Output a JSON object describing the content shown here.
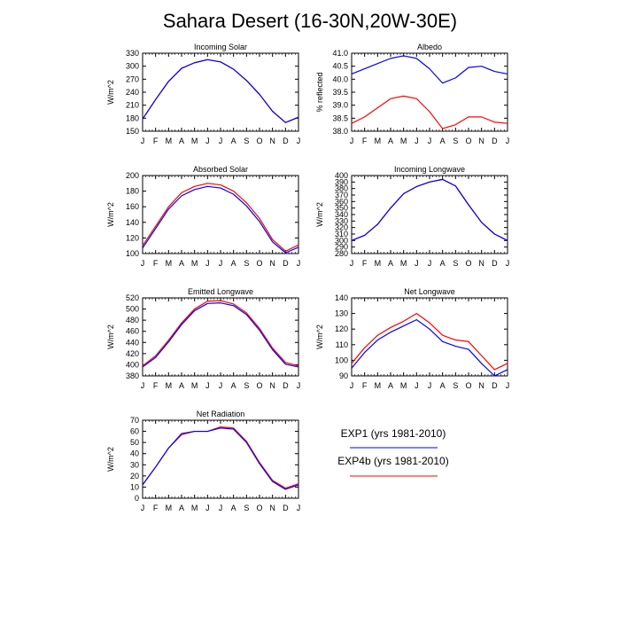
{
  "title": "Sahara Desert (16-30N,20W-30E)",
  "legend": {
    "placement": "lower-right",
    "entries": [
      {
        "label": "EXP1 (yrs 1981-2010)",
        "color": "#0000ff"
      },
      {
        "label": "EXP4b (yrs 1981-2010)",
        "color": "#ff0000"
      }
    ]
  },
  "chart_data": [
    {
      "type": "line",
      "title": "Incoming Solar",
      "ylabel": "W/m^2",
      "categories": [
        "J",
        "F",
        "M",
        "A",
        "M",
        "J",
        "J",
        "A",
        "S",
        "O",
        "N",
        "D",
        "J"
      ],
      "ylim": [
        150,
        330
      ],
      "yticks": [
        "150",
        "180",
        "210",
        "240",
        "270",
        "300",
        "330"
      ],
      "series": [
        {
          "color": "#ff0000",
          "values": [
            178,
            223,
            265,
            295,
            308,
            315,
            310,
            293,
            267,
            235,
            196,
            170,
            182
          ]
        },
        {
          "color": "#0000ff",
          "values": [
            178,
            223,
            265,
            295,
            308,
            315,
            310,
            293,
            267,
            235,
            196,
            170,
            182
          ]
        }
      ]
    },
    {
      "type": "line",
      "title": "Albedo",
      "ylabel": "% reflected",
      "categories": [
        "J",
        "F",
        "M",
        "A",
        "M",
        "J",
        "J",
        "A",
        "S",
        "O",
        "N",
        "D",
        "J"
      ],
      "ylim": [
        38.0,
        41.0
      ],
      "yticks": [
        "38.0",
        "38.5",
        "39.0",
        "39.5",
        "40.0",
        "40.5",
        "41.0"
      ],
      "series": [
        {
          "color": "#0000ff",
          "values": [
            40.2,
            40.4,
            40.6,
            40.8,
            40.9,
            40.8,
            40.4,
            39.85,
            40.05,
            40.45,
            40.5,
            40.3,
            40.2
          ]
        },
        {
          "color": "#ff0000",
          "values": [
            38.3,
            38.55,
            38.9,
            39.25,
            39.35,
            39.25,
            38.75,
            38.1,
            38.25,
            38.55,
            38.55,
            38.35,
            38.3
          ]
        }
      ]
    },
    {
      "type": "line",
      "title": "Absorbed Solar",
      "ylabel": "W/m^2",
      "categories": [
        "J",
        "F",
        "M",
        "A",
        "M",
        "J",
        "J",
        "A",
        "S",
        "O",
        "N",
        "D",
        "J"
      ],
      "ylim": [
        100,
        200
      ],
      "yticks": [
        "100",
        "120",
        "140",
        "160",
        "180",
        "200"
      ],
      "series": [
        {
          "color": "#ff0000",
          "values": [
            110,
            135,
            160,
            178,
            186,
            190,
            188,
            180,
            165,
            145,
            118,
            103,
            111
          ]
        },
        {
          "color": "#0000ff",
          "values": [
            107,
            132,
            157,
            174,
            182,
            186,
            184,
            176,
            161,
            141,
            115,
            101,
            108
          ]
        }
      ]
    },
    {
      "type": "line",
      "title": "Incoming Longwave",
      "ylabel": "W/m^2",
      "categories": [
        "J",
        "F",
        "M",
        "A",
        "M",
        "J",
        "J",
        "A",
        "S",
        "O",
        "N",
        "D",
        "J"
      ],
      "ylim": [
        280,
        400
      ],
      "yticks": [
        "280",
        "290",
        "300",
        "310",
        "320",
        "330",
        "340",
        "350",
        "360",
        "370",
        "380",
        "390",
        "400"
      ],
      "series": [
        {
          "color": "#ff0000",
          "values": [
            300,
            308,
            325,
            350,
            372,
            383,
            390,
            394,
            384,
            355,
            328,
            310,
            300
          ]
        },
        {
          "color": "#0000ff",
          "values": [
            300,
            308,
            325,
            350,
            372,
            383,
            390,
            394,
            384,
            355,
            328,
            310,
            300
          ]
        }
      ]
    },
    {
      "type": "line",
      "title": "Emitted Longwave",
      "ylabel": "W/m^2",
      "categories": [
        "J",
        "F",
        "M",
        "A",
        "M",
        "J",
        "J",
        "A",
        "S",
        "O",
        "N",
        "D",
        "J"
      ],
      "ylim": [
        380,
        520
      ],
      "yticks": [
        "380",
        "400",
        "420",
        "440",
        "460",
        "480",
        "500",
        "520"
      ],
      "series": [
        {
          "color": "#ff0000",
          "values": [
            398,
            416,
            444,
            475,
            500,
            514,
            515,
            509,
            493,
            465,
            430,
            404,
            398
          ]
        },
        {
          "color": "#0000ff",
          "values": [
            396,
            413,
            441,
            472,
            497,
            510,
            511,
            506,
            490,
            462,
            427,
            401,
            396
          ]
        }
      ]
    },
    {
      "type": "line",
      "title": "Net Longwave",
      "ylabel": "W/m^2",
      "categories": [
        "J",
        "F",
        "M",
        "A",
        "M",
        "J",
        "J",
        "A",
        "S",
        "O",
        "N",
        "D",
        "J"
      ],
      "ylim": [
        90,
        140
      ],
      "yticks": [
        "90",
        "100",
        "110",
        "120",
        "130",
        "140"
      ],
      "series": [
        {
          "color": "#ff0000",
          "values": [
            98,
            108,
            116,
            121,
            125,
            130,
            124,
            116,
            113,
            112,
            103,
            94,
            98
          ]
        },
        {
          "color": "#0000ff",
          "values": [
            95,
            105,
            113,
            118,
            122,
            126,
            120,
            112,
            109,
            107,
            98,
            90,
            94
          ]
        }
      ]
    },
    {
      "type": "line",
      "title": "Net Radiation",
      "ylabel": "W/m^2",
      "categories": [
        "J",
        "F",
        "M",
        "A",
        "M",
        "J",
        "J",
        "A",
        "S",
        "O",
        "N",
        "D",
        "J"
      ],
      "ylim": [
        0,
        70
      ],
      "yticks": [
        "0",
        "10",
        "20",
        "30",
        "40",
        "50",
        "60",
        "70"
      ],
      "series": [
        {
          "color": "#ff0000",
          "values": [
            12,
            28,
            45,
            57,
            60,
            60,
            64,
            63,
            51,
            32,
            16,
            9,
            13
          ]
        },
        {
          "color": "#0000ff",
          "values": [
            12,
            28,
            45,
            58,
            60,
            60,
            63,
            62,
            50,
            31,
            15,
            8,
            12
          ]
        }
      ]
    }
  ]
}
